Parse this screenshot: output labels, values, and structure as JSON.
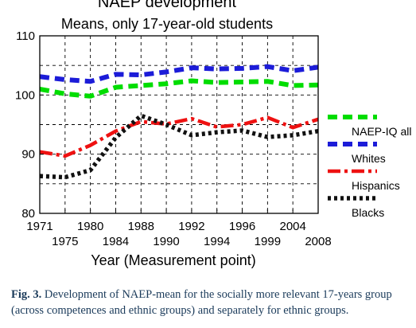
{
  "chart_data": {
    "type": "line",
    "title": "NAEP development",
    "subtitle": "Means, only 17-year-old students",
    "xlabel": "Year (Measurement point)",
    "ylabel": "",
    "ylim": [
      80,
      110
    ],
    "yticks": [
      80,
      90,
      100,
      110
    ],
    "x": [
      "1971",
      "1975",
      "1980",
      "1984",
      "1988",
      "1990",
      "1992",
      "1994",
      "1996",
      "1999",
      "2004",
      "2008"
    ],
    "x_tick_rows": {
      "top": [
        "1971",
        "1980",
        "1988",
        "1992",
        "1996",
        "2004"
      ],
      "bottom": [
        "1975",
        "1984",
        "1990",
        "1994",
        "1999",
        "2008"
      ]
    },
    "grid": true,
    "legend_position": "right",
    "series": [
      {
        "name": "NAEP-IQ all",
        "color": "#00dd00",
        "values": [
          101.0,
          100.2,
          99.8,
          101.3,
          101.6,
          101.9,
          102.4,
          102.1,
          102.2,
          102.3,
          101.6,
          101.7
        ]
      },
      {
        "name": "Whites",
        "color": "#1c1cd8",
        "values": [
          103.1,
          102.6,
          102.3,
          103.5,
          103.4,
          103.9,
          104.6,
          104.4,
          104.5,
          104.8,
          104.1,
          104.7
        ]
      },
      {
        "name": "Hispanics",
        "color": "#ee1111",
        "values": [
          90.4,
          89.7,
          91.5,
          93.9,
          95.5,
          95.1,
          96.0,
          94.6,
          95.0,
          96.2,
          94.5,
          95.9
        ]
      },
      {
        "name": "Blacks",
        "color": "#111111",
        "values": [
          86.3,
          86.1,
          87.3,
          92.8,
          96.5,
          95.0,
          93.2,
          93.7,
          94.0,
          92.9,
          93.2,
          93.9
        ]
      }
    ]
  },
  "caption": {
    "label": "Fig. 3.",
    "text": "Development of NAEP-mean for the socially more relevant 17-years group (across competences and ethnic groups) and separately for ethnic groups."
  }
}
